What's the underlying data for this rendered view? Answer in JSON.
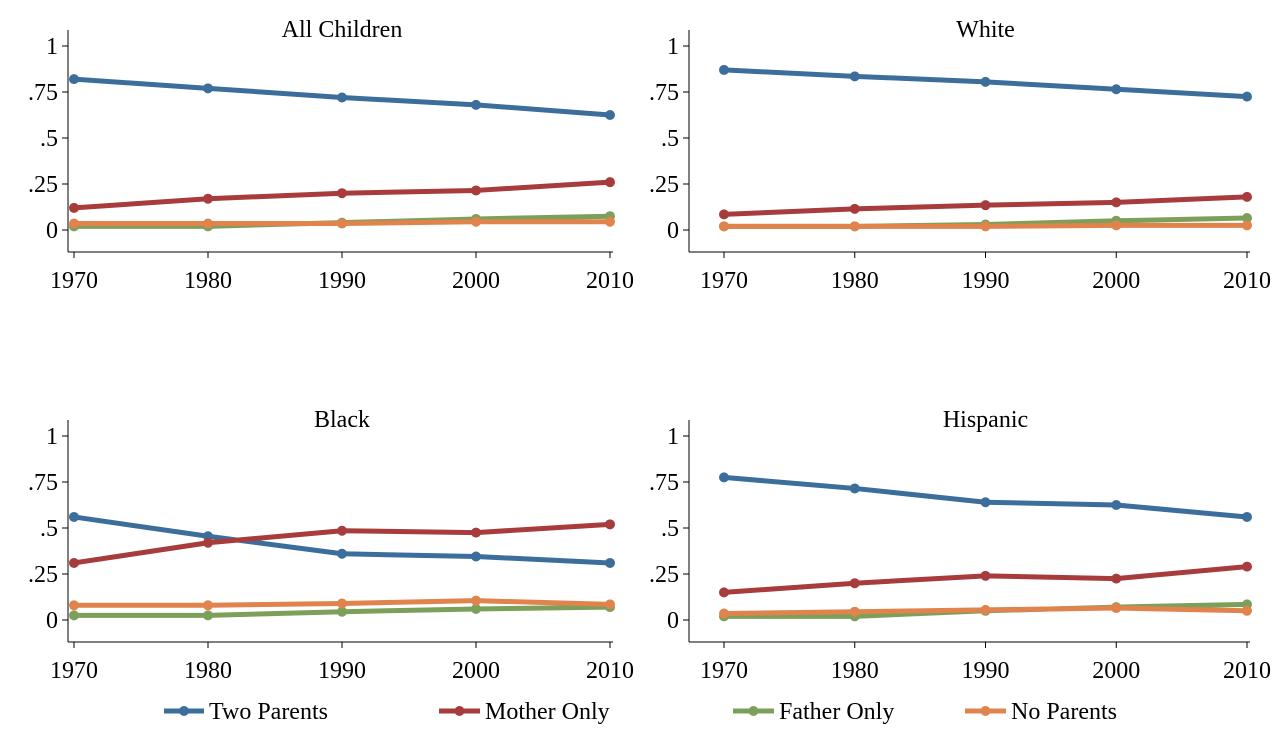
{
  "chart_data": {
    "type": "line",
    "x": [
      1970,
      1980,
      1990,
      2000,
      2010
    ],
    "xlim": [
      1970,
      2010
    ],
    "ylim": [
      0,
      1
    ],
    "x_ticks": [
      "1970",
      "1980",
      "1990",
      "2000",
      "2010"
    ],
    "y_ticks": [
      {
        "value": 0,
        "label": "0"
      },
      {
        "value": 0.25,
        "label": ".25"
      },
      {
        "value": 0.5,
        "label": ".5"
      },
      {
        "value": 0.75,
        "label": ".75"
      },
      {
        "value": 1,
        "label": "1"
      }
    ],
    "grid": false,
    "legend_placement": "bottom",
    "series_meta": [
      {
        "name": "Two Parents",
        "color": "#3b6e9a"
      },
      {
        "name": "Mother Only",
        "color": "#a83c3c"
      },
      {
        "name": "Father Only",
        "color": "#7ca05a"
      },
      {
        "name": "No Parents",
        "color": "#e0834c"
      }
    ],
    "panels": [
      {
        "title": "All Children",
        "series": [
          {
            "name": "Two Parents",
            "values": [
              0.82,
              0.77,
              0.72,
              0.68,
              0.625
            ]
          },
          {
            "name": "Mother Only",
            "values": [
              0.12,
              0.17,
              0.2,
              0.215,
              0.26
            ]
          },
          {
            "name": "Father Only",
            "values": [
              0.02,
              0.02,
              0.04,
              0.06,
              0.075
            ]
          },
          {
            "name": "No Parents",
            "values": [
              0.035,
              0.035,
              0.035,
              0.045,
              0.045
            ]
          }
        ]
      },
      {
        "title": "White",
        "series": [
          {
            "name": "Two Parents",
            "values": [
              0.87,
              0.835,
              0.805,
              0.765,
              0.725
            ]
          },
          {
            "name": "Mother Only",
            "values": [
              0.085,
              0.115,
              0.135,
              0.15,
              0.18
            ]
          },
          {
            "name": "Father Only",
            "values": [
              0.02,
              0.02,
              0.03,
              0.05,
              0.065
            ]
          },
          {
            "name": "No Parents",
            "values": [
              0.02,
              0.02,
              0.02,
              0.025,
              0.025
            ]
          }
        ]
      },
      {
        "title": "Black",
        "series": [
          {
            "name": "Two Parents",
            "values": [
              0.56,
              0.455,
              0.36,
              0.345,
              0.31
            ]
          },
          {
            "name": "Mother Only",
            "values": [
              0.31,
              0.42,
              0.485,
              0.475,
              0.52
            ]
          },
          {
            "name": "Father Only",
            "values": [
              0.025,
              0.025,
              0.045,
              0.06,
              0.07
            ]
          },
          {
            "name": "No Parents",
            "values": [
              0.08,
              0.08,
              0.09,
              0.105,
              0.085
            ]
          }
        ]
      },
      {
        "title": "Hispanic",
        "series": [
          {
            "name": "Two Parents",
            "values": [
              0.775,
              0.715,
              0.64,
              0.625,
              0.56
            ]
          },
          {
            "name": "Mother Only",
            "values": [
              0.15,
              0.2,
              0.24,
              0.225,
              0.29
            ]
          },
          {
            "name": "Father Only",
            "values": [
              0.02,
              0.02,
              0.05,
              0.07,
              0.085
            ]
          },
          {
            "name": "No Parents",
            "values": [
              0.035,
              0.045,
              0.055,
              0.065,
              0.05
            ]
          }
        ]
      }
    ]
  }
}
